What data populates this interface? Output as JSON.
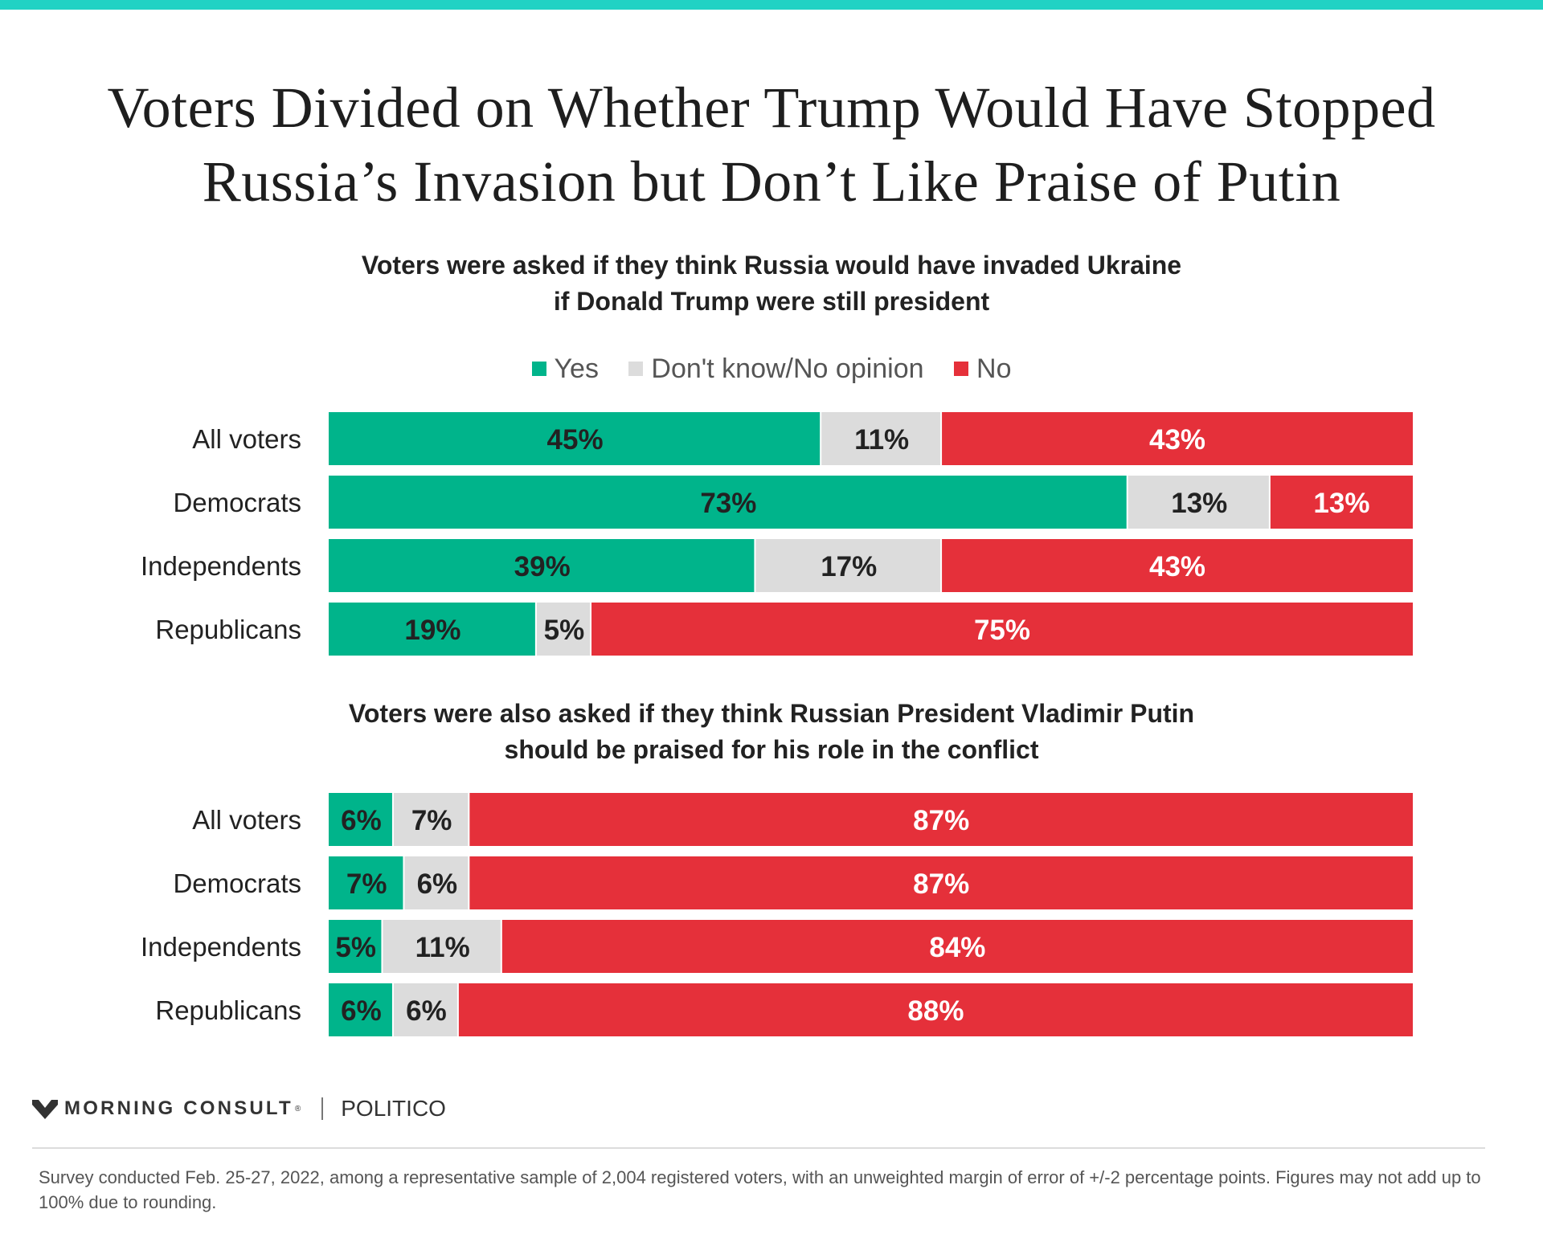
{
  "colors": {
    "accent_top": "#21d2c4",
    "yes": "#00b48b",
    "dont_know": "#dcdcdc",
    "no": "#e5303a"
  },
  "title": {
    "line1": "Voters Divided on Whether Trump Would Have Stopped",
    "line2": "Russia’s Invasion but Don’t Like Praise of Putin"
  },
  "chart_data": [
    {
      "type": "bar",
      "orientation": "horizontal",
      "stacked": true,
      "title_line1": "Voters were asked if they think Russia would have invaded Ukraine",
      "title_line2": "if Donald Trump were still president",
      "categories": [
        "All voters",
        "Democrats",
        "Independents",
        "Republicans"
      ],
      "series": [
        {
          "name": "Yes",
          "color": "#00b48b",
          "values": [
            45,
            73,
            39,
            19
          ]
        },
        {
          "name": "Don't know/No opinion",
          "color": "#dcdcdc",
          "values": [
            11,
            13,
            17,
            5
          ]
        },
        {
          "name": "No",
          "color": "#e5303a",
          "values": [
            43,
            13,
            43,
            75
          ]
        }
      ],
      "value_suffix": "%",
      "legend": "top-center"
    },
    {
      "type": "bar",
      "orientation": "horizontal",
      "stacked": true,
      "title_line1": "Voters were also asked if they think Russian President Vladimir Putin",
      "title_line2": "should be praised for his role in the conflict",
      "categories": [
        "All voters",
        "Democrats",
        "Independents",
        "Republicans"
      ],
      "series": [
        {
          "name": "Yes",
          "color": "#00b48b",
          "values": [
            6,
            7,
            5,
            6
          ]
        },
        {
          "name": "Don't know/No opinion",
          "color": "#dcdcdc",
          "values": [
            7,
            6,
            11,
            6
          ]
        },
        {
          "name": "No",
          "color": "#e5303a",
          "values": [
            87,
            87,
            84,
            88
          ]
        }
      ],
      "value_suffix": "%"
    }
  ],
  "legend": [
    {
      "label": "Yes",
      "color": "#00b48b"
    },
    {
      "label": "Don't know/No opinion",
      "color": "#dcdcdc"
    },
    {
      "label": "No",
      "color": "#e5303a"
    }
  ],
  "branding": {
    "morning_consult": "MORNING CONSULT",
    "trademark": "®",
    "politico": "POLITICO"
  },
  "footnote": "Survey conducted Feb. 25-27, 2022, among a representative sample of 2,004 registered voters, with an unweighted margin of error of +/-2 percentage points. Figures may not add up to 100% due to rounding."
}
